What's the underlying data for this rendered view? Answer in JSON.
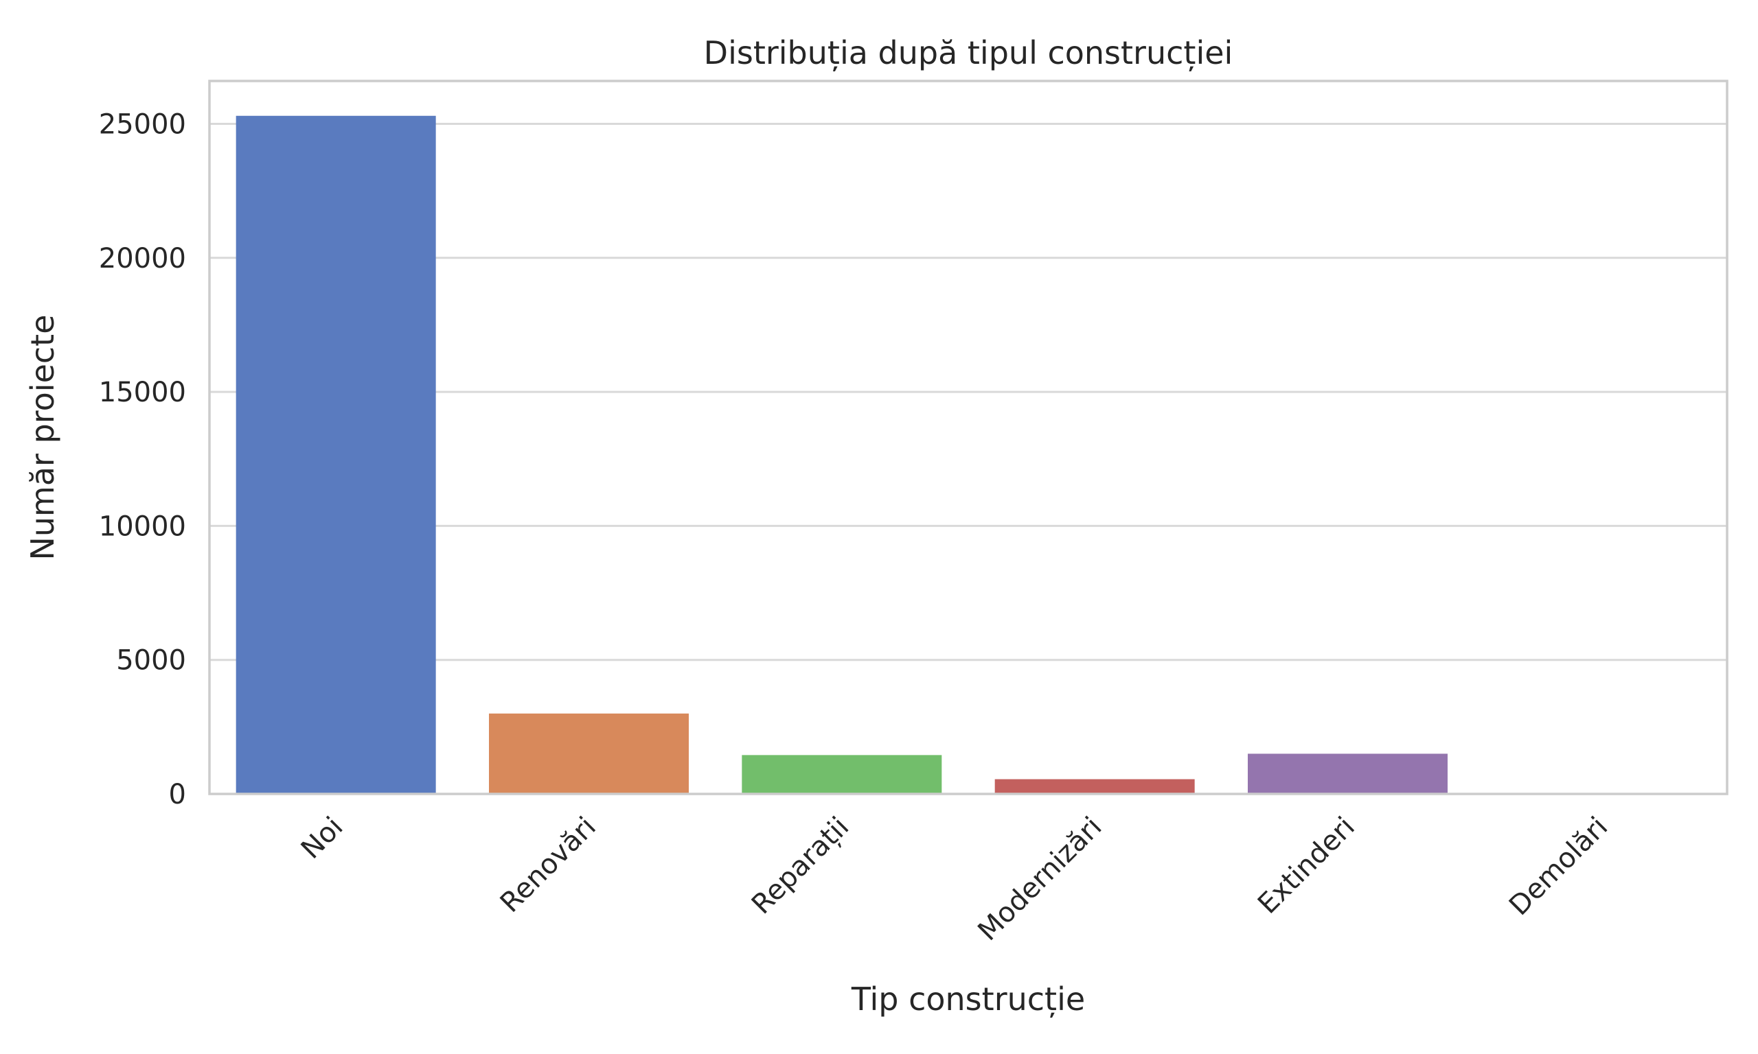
{
  "chart_data": {
    "type": "bar",
    "title": "Distribuția după tipul construcției",
    "xlabel": "Tip construcție",
    "ylabel": "Număr proiecte",
    "categories": [
      "Noi",
      "Renovări",
      "Reparații",
      "Modernizări",
      "Extinderi",
      "Demolări"
    ],
    "values": [
      25300,
      3000,
      1450,
      550,
      1500,
      20
    ],
    "colors": [
      "#5a7bbf",
      "#d8895b",
      "#72be6b",
      "#c3605e",
      "#9475ae",
      "#8c7361"
    ],
    "yticks": [
      0,
      5000,
      10000,
      15000,
      20000,
      25000
    ],
    "ylim": [
      0,
      26600
    ],
    "grid": true,
    "grid_axis": "y",
    "legend": "none"
  }
}
